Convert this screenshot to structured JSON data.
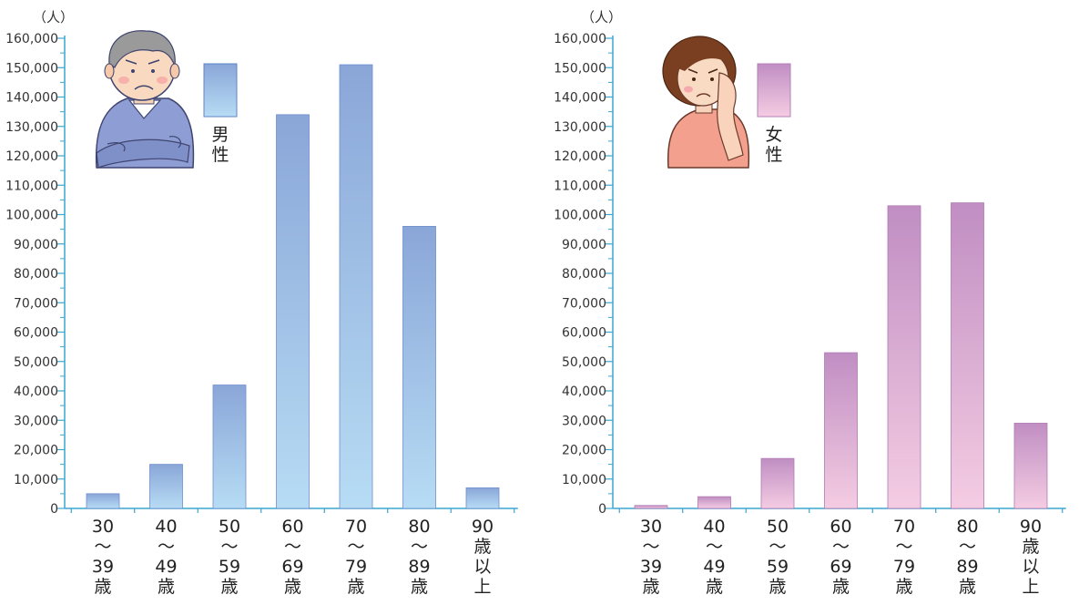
{
  "chart_data": [
    {
      "type": "bar",
      "unit_label": "（人）",
      "legend": {
        "label_lines": [
          "男",
          "性"
        ],
        "color_top": "#8aa6d8",
        "color_bottom": "#b7dcf4"
      },
      "categories": [
        {
          "lines": [
            "30",
            "〜",
            "39",
            "歳"
          ]
        },
        {
          "lines": [
            "40",
            "〜",
            "49",
            "歳"
          ]
        },
        {
          "lines": [
            "50",
            "〜",
            "59",
            "歳"
          ]
        },
        {
          "lines": [
            "60",
            "〜",
            "69",
            "歳"
          ]
        },
        {
          "lines": [
            "70",
            "〜",
            "79",
            "歳"
          ]
        },
        {
          "lines": [
            "80",
            "〜",
            "89",
            "歳"
          ]
        },
        {
          "lines": [
            "90",
            "歳",
            "以",
            "上"
          ]
        }
      ],
      "values": [
        5000,
        15000,
        42000,
        134000,
        151000,
        96000,
        7000
      ],
      "ylim": [
        0,
        160000
      ],
      "y_ticks": [
        "0",
        "10,000",
        "20,000",
        "30,000",
        "40,000",
        "50,000",
        "60,000",
        "70,000",
        "80,000",
        "90,000",
        "100,000",
        "110,000",
        "120,000",
        "130,000",
        "140,000",
        "150,000",
        "160,000"
      ],
      "illustration": "elderly-man-icon",
      "axis_color": "#3ba7cf",
      "grid": false
    },
    {
      "type": "bar",
      "unit_label": "（人）",
      "legend": {
        "label_lines": [
          "女",
          "性"
        ],
        "color_top": "#c08ec3",
        "color_bottom": "#f4cce2"
      },
      "categories": [
        {
          "lines": [
            "30",
            "〜",
            "39",
            "歳"
          ]
        },
        {
          "lines": [
            "40",
            "〜",
            "49",
            "歳"
          ]
        },
        {
          "lines": [
            "50",
            "〜",
            "59",
            "歳"
          ]
        },
        {
          "lines": [
            "60",
            "〜",
            "69",
            "歳"
          ]
        },
        {
          "lines": [
            "70",
            "〜",
            "79",
            "歳"
          ]
        },
        {
          "lines": [
            "80",
            "〜",
            "89",
            "歳"
          ]
        },
        {
          "lines": [
            "90",
            "歳",
            "以",
            "上"
          ]
        }
      ],
      "values": [
        1000,
        4000,
        17000,
        53000,
        103000,
        104000,
        29000
      ],
      "ylim": [
        0,
        160000
      ],
      "y_ticks": [
        "0",
        "10,000",
        "20,000",
        "30,000",
        "40,000",
        "50,000",
        "60,000",
        "70,000",
        "80,000",
        "90,000",
        "100,000",
        "110,000",
        "120,000",
        "130,000",
        "140,000",
        "150,000",
        "160,000"
      ],
      "illustration": "elderly-woman-icon",
      "axis_color": "#3ba7cf",
      "grid": false
    }
  ]
}
